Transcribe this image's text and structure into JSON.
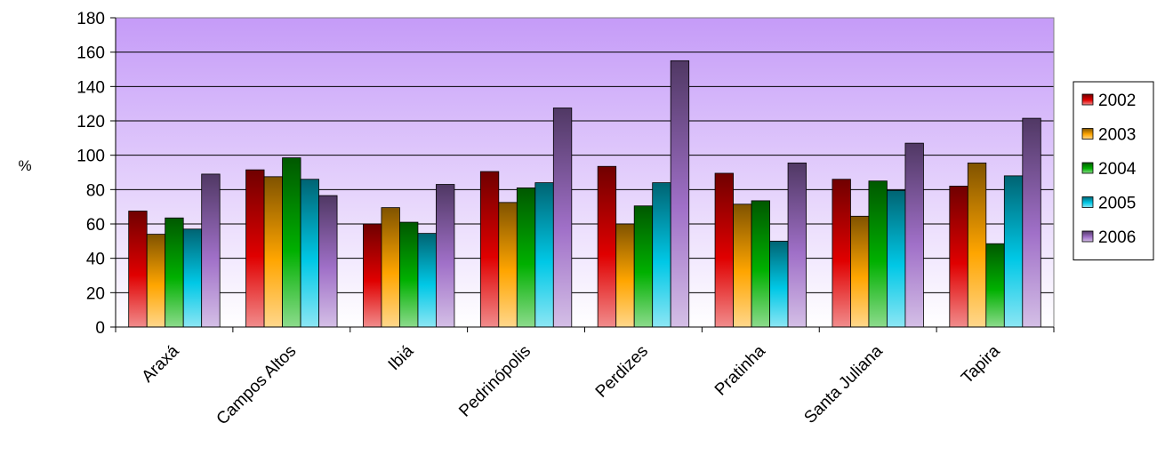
{
  "chart_data": {
    "type": "bar",
    "categories": [
      "Araxá",
      "Campos Altos",
      "Ibiá",
      "Pedrinópolis",
      "Perdizes",
      "Pratinha",
      "Santa Juliana",
      "Tapira"
    ],
    "series": [
      {
        "name": "2002",
        "color": "#e00000",
        "values": [
          67.5,
          91.5,
          60,
          90.5,
          93.5,
          89.5,
          86,
          82
        ]
      },
      {
        "name": "2003",
        "color": "#ffa500",
        "values": [
          54,
          87.5,
          69.5,
          72.5,
          60,
          71.5,
          64.5,
          95.5
        ]
      },
      {
        "name": "2004",
        "color": "#00b000",
        "values": [
          63.5,
          98.5,
          61,
          81,
          70.5,
          73.5,
          85,
          48.5
        ]
      },
      {
        "name": "2005",
        "color": "#00c8e6",
        "values": [
          57,
          86,
          54.5,
          84,
          84,
          50,
          79.5,
          88
        ]
      },
      {
        "name": "2006",
        "color": "#a070c8",
        "values": [
          89,
          76.5,
          83,
          127.5,
          155,
          95.5,
          107,
          121.5
        ]
      }
    ],
    "ylabel": "%",
    "ylim": [
      0,
      180
    ],
    "yticks": [
      0,
      20,
      40,
      60,
      80,
      100,
      120,
      140,
      160,
      180
    ],
    "grid": true,
    "legend_position": "right"
  }
}
